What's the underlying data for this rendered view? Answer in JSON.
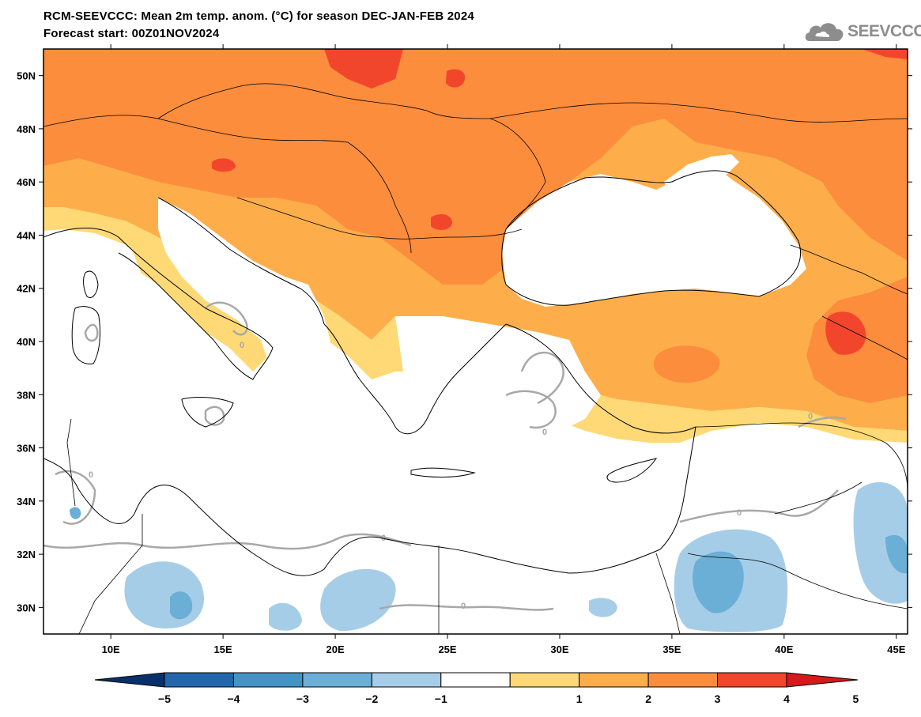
{
  "header": {
    "title_line1": "RCM-SEEVCCC: Mean 2m temp. anom. (°C) for season DEC-JAN-FEB 2024",
    "title_line2": "Forecast start: 00Z01NOV2024",
    "logo_text": "SEEVCCC",
    "logo_icon": "cloud-icon"
  },
  "map": {
    "lon_range": [
      7,
      45.5
    ],
    "lat_range": [
      29,
      51
    ],
    "lat_labels": [
      "50N",
      "48N",
      "46N",
      "44N",
      "42N",
      "40N",
      "38N",
      "36N",
      "34N",
      "32N",
      "30N"
    ],
    "lat_values": [
      50,
      48,
      46,
      44,
      42,
      40,
      38,
      36,
      34,
      32,
      30
    ],
    "lon_labels": [
      "10E",
      "15E",
      "20E",
      "25E",
      "30E",
      "35E",
      "40E",
      "45E"
    ],
    "lon_values": [
      10,
      15,
      20,
      25,
      30,
      35,
      40,
      45
    ],
    "contour_label": "0"
  },
  "colorbar": {
    "tick_labels": [
      "−5",
      "−4",
      "−3",
      "−2",
      "−1",
      "1",
      "2",
      "3",
      "4",
      "5"
    ],
    "colors": [
      "#08306b",
      "#2166ac",
      "#4393c3",
      "#6baed6",
      "#a6cde8",
      "#ffffff",
      "#fed976",
      "#fdae4b",
      "#fc8d3c",
      "#f1462c",
      "#d7191c"
    ]
  },
  "colors": {
    "anom_1_2": "#fed976",
    "anom_2_3": "#fdae4b",
    "anom_3_4": "#fc8d3c",
    "anom_4_5": "#f1462c",
    "anom_neg1_neg2": "#a6cde8",
    "anom_neg2_neg3": "#6baed6",
    "zero_contour": "#a8a8a8"
  }
}
